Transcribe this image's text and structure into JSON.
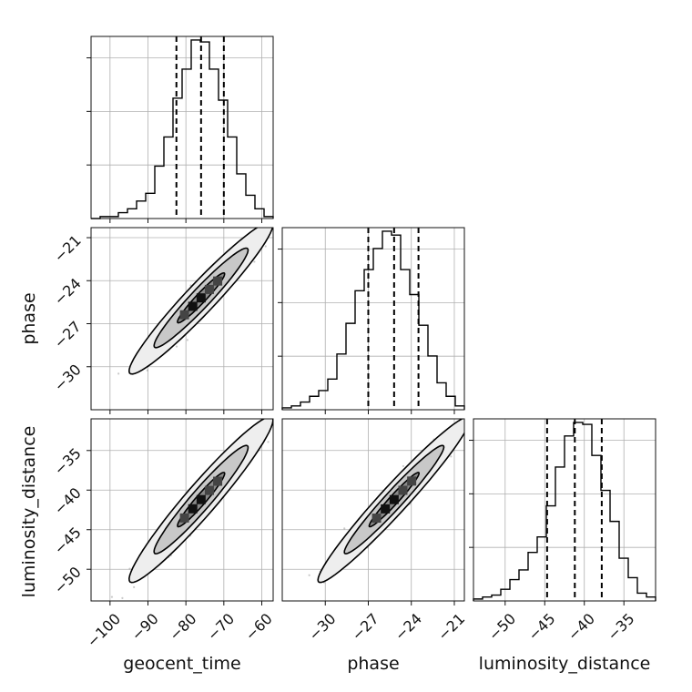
{
  "chart_data": {
    "type": "corner",
    "parameters": [
      "geocent_time",
      "phase",
      "luminosity_distance"
    ],
    "axis_labels": {
      "x": [
        "geocent_time",
        "phase",
        "luminosity_distance"
      ],
      "y": [
        "phase",
        "luminosity_distance"
      ]
    },
    "ranges": {
      "geocent_time": [
        -105,
        -57
      ],
      "phase": [
        -33,
        -20.3
      ],
      "luminosity_distance": [
        -54,
        -31
      ]
    },
    "ticks": {
      "geocent_time": [
        -100,
        -90,
        -80,
        -70,
        -60
      ],
      "phase": [
        -30,
        -27,
        -24,
        -21
      ],
      "luminosity_distance": [
        -50,
        -45,
        -40,
        -35
      ]
    },
    "tick_labels": {
      "geocent_time": [
        "−100",
        "−90",
        "−80",
        "−70",
        "−60"
      ],
      "phase": [
        "−30",
        "−27",
        "−24",
        "−21"
      ],
      "luminosity_distance": [
        "−50",
        "−45",
        "−40",
        "−35"
      ]
    },
    "quantiles": {
      "geocent_time": [
        -82.5,
        -76,
        -70
      ],
      "phase": [
        -27,
        -25.2,
        -23.5
      ],
      "luminosity_distance": [
        -44.7,
        -41.2,
        -37.8
      ]
    },
    "histograms": {
      "geocent_time": {
        "bins": [
          -105,
          -102.6,
          -100.2,
          -97.8,
          -95.4,
          -93,
          -90.6,
          -88.2,
          -85.8,
          -83.4,
          -81,
          -78.6,
          -76.2,
          -73.8,
          -71.4,
          -69,
          -66.6,
          -64.2,
          -61.8,
          -59.4,
          -57
        ],
        "counts": [
          0,
          1,
          1,
          3,
          5,
          9,
          13,
          27,
          42,
          62,
          77,
          92,
          91,
          77,
          61,
          42,
          23,
          12,
          5,
          1
        ]
      },
      "phase": {
        "bins": [
          -33,
          -32.365,
          -31.73,
          -31.095,
          -30.46,
          -29.825,
          -29.19,
          -28.555,
          -27.92,
          -27.285,
          -26.65,
          -26.015,
          -25.38,
          -24.745,
          -24.11,
          -23.475,
          -22.84,
          -22.205,
          -21.57,
          -20.935,
          -20.3
        ],
        "counts": [
          1,
          2,
          4,
          7,
          10,
          16,
          29,
          45,
          62,
          73,
          84,
          93,
          91,
          73,
          60,
          44,
          28,
          14,
          7,
          2
        ]
      },
      "luminosity_distance": {
        "bins": [
          -54,
          -52.85,
          -51.7,
          -50.55,
          -49.4,
          -48.25,
          -47.1,
          -45.95,
          -44.8,
          -43.65,
          -42.5,
          -41.35,
          -40.2,
          -39.05,
          -37.9,
          -36.75,
          -35.6,
          -34.45,
          -33.3,
          -32.15,
          -31
        ],
        "counts": [
          1,
          2,
          3,
          6,
          11,
          16,
          25,
          33,
          49,
          69,
          85,
          92,
          91,
          75,
          57,
          41,
          22,
          12,
          4,
          2
        ]
      }
    },
    "correlations": [
      {
        "x": "geocent_time",
        "y": "phase",
        "rho": 0.96
      },
      {
        "x": "geocent_time",
        "y": "luminosity_distance",
        "rho": 0.96
      },
      {
        "x": "phase",
        "y": "luminosity_distance",
        "rho": 0.97
      }
    ],
    "contour_levels": [
      0.39,
      0.86,
      0.99
    ],
    "grid": true,
    "colors": {
      "hist": "#000000",
      "quantile": "#000000",
      "points": "#888888",
      "contour": "#000000"
    }
  }
}
